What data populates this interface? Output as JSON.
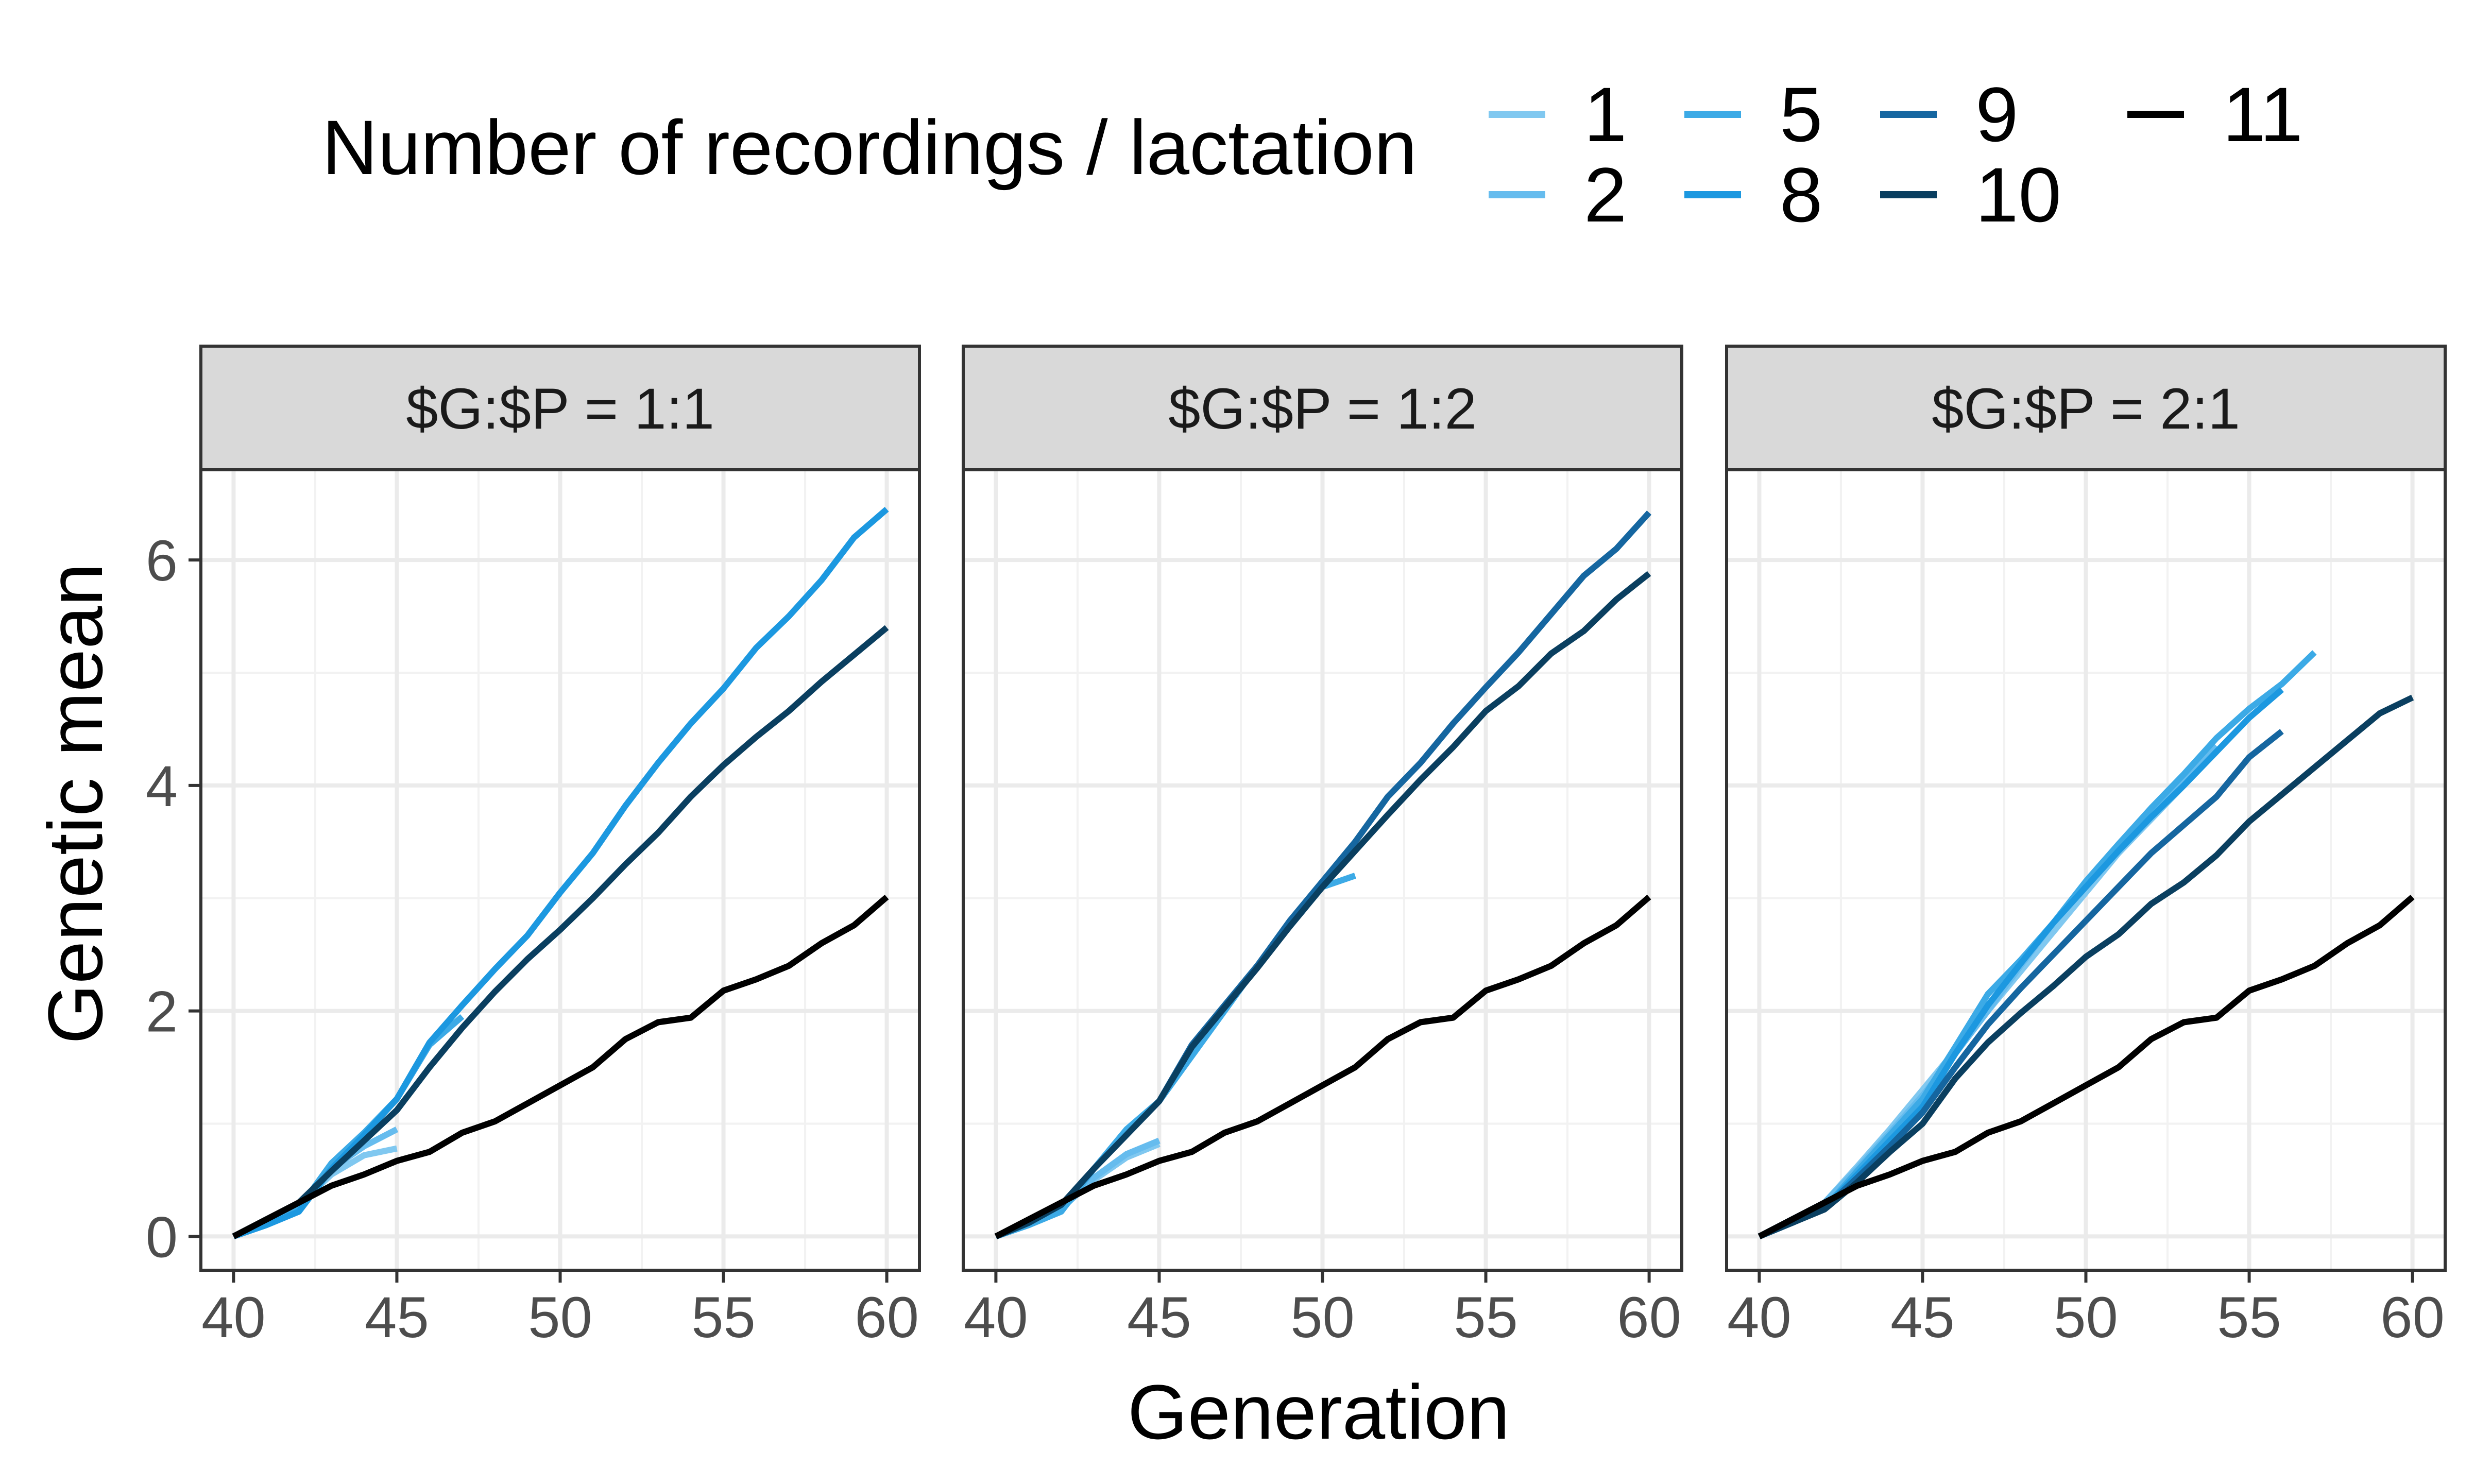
{
  "legend": {
    "title": "Number of recordings / lactation",
    "entries": [
      {
        "label": "1",
        "color": "#80C8F0"
      },
      {
        "label": "2",
        "color": "#66BCEE"
      },
      {
        "label": "5",
        "color": "#3CAAE6"
      },
      {
        "label": "8",
        "color": "#1C98E0"
      },
      {
        "label": "9",
        "color": "#1566A0"
      },
      {
        "label": "10",
        "color": "#0A3F60"
      },
      {
        "label": "11",
        "color": "#000000"
      }
    ]
  },
  "chart_data": {
    "type": "line",
    "xlabel": "Generation",
    "ylabel": "Genetic mean",
    "xlim": [
      39,
      61
    ],
    "ylim": [
      -0.3,
      6.8
    ],
    "x_ticks": [
      40,
      45,
      50,
      55,
      60
    ],
    "y_ticks": [
      0,
      2,
      4,
      6
    ],
    "grid": true,
    "legend_position": "top",
    "panels": [
      {
        "title": "$G:$P = 1:1",
        "series": [
          {
            "name": "1",
            "x": [
              40,
              41,
              42,
              43,
              44,
              45
            ],
            "y": [
              0,
              0.15,
              0.28,
              0.55,
              0.72,
              0.78
            ]
          },
          {
            "name": "2",
            "x": [
              40,
              41,
              42,
              43,
              44,
              45
            ],
            "y": [
              0,
              0.14,
              0.27,
              0.6,
              0.8,
              0.95
            ]
          },
          {
            "name": "5",
            "x": [
              40,
              41,
              42,
              43,
              44,
              45,
              46,
              47
            ],
            "y": [
              0,
              0.12,
              0.25,
              0.65,
              0.92,
              1.22,
              1.7,
              1.95
            ]
          },
          {
            "name": "8",
            "x": [
              40,
              41,
              42,
              43,
              44,
              45,
              46,
              47,
              48,
              49,
              50,
              51,
              52,
              53,
              54,
              55,
              56,
              57,
              58,
              59,
              60
            ],
            "y": [
              0,
              0.1,
              0.22,
              0.6,
              0.9,
              1.22,
              1.72,
              2.05,
              2.37,
              2.67,
              3.05,
              3.4,
              3.82,
              4.2,
              4.55,
              4.86,
              5.22,
              5.5,
              5.82,
              6.2,
              6.45
            ]
          },
          {
            "name": "10",
            "x": [
              40,
              41,
              42,
              43,
              44,
              45,
              46,
              47,
              48,
              49,
              50,
              51,
              52,
              53,
              54,
              55,
              56,
              57,
              58,
              59,
              60
            ],
            "y": [
              0,
              0.15,
              0.3,
              0.58,
              0.85,
              1.12,
              1.5,
              1.85,
              2.17,
              2.46,
              2.72,
              3.0,
              3.3,
              3.58,
              3.9,
              4.18,
              4.43,
              4.66,
              4.92,
              5.16,
              5.4
            ]
          },
          {
            "name": "11",
            "x": [
              40,
              41,
              42,
              43,
              44,
              45,
              46,
              47,
              48,
              49,
              50,
              51,
              52,
              53,
              54,
              55,
              56,
              57,
              58,
              59,
              60
            ],
            "y": [
              0,
              0.15,
              0.3,
              0.45,
              0.55,
              0.67,
              0.75,
              0.92,
              1.02,
              1.18,
              1.34,
              1.5,
              1.75,
              1.9,
              1.94,
              2.18,
              2.28,
              2.4,
              2.6,
              2.76,
              3.01
            ]
          }
        ]
      },
      {
        "title": "$G:$P = 1:2",
        "series": [
          {
            "name": "1",
            "x": [
              40,
              41,
              42,
              43,
              44,
              45
            ],
            "y": [
              0,
              0.12,
              0.25,
              0.5,
              0.7,
              0.82
            ]
          },
          {
            "name": "2",
            "x": [
              40,
              41,
              42,
              43,
              44,
              45
            ],
            "y": [
              0,
              0.11,
              0.24,
              0.52,
              0.73,
              0.85
            ]
          },
          {
            "name": "5",
            "x": [
              40,
              41,
              42,
              43,
              44,
              45,
              46,
              47,
              48,
              49,
              50,
              51
            ],
            "y": [
              0,
              0.1,
              0.22,
              0.6,
              0.95,
              1.2,
              1.6,
              2.0,
              2.4,
              2.75,
              3.1,
              3.2
            ]
          },
          {
            "name": "9",
            "x": [
              40,
              41,
              42,
              43,
              44,
              45,
              46,
              47,
              48,
              49,
              50,
              51,
              52,
              53,
              54,
              55,
              56,
              57,
              58,
              59,
              60
            ],
            "y": [
              0,
              0.12,
              0.28,
              0.6,
              0.9,
              1.2,
              1.7,
              2.05,
              2.4,
              2.8,
              3.15,
              3.5,
              3.9,
              4.2,
              4.55,
              4.87,
              5.18,
              5.52,
              5.86,
              6.1,
              6.42
            ]
          },
          {
            "name": "10",
            "x": [
              40,
              41,
              42,
              43,
              44,
              45,
              46,
              47,
              48,
              49,
              50,
              51,
              52,
              53,
              54,
              55,
              56,
              57,
              58,
              59,
              60
            ],
            "y": [
              0,
              0.12,
              0.28,
              0.6,
              0.9,
              1.2,
              1.68,
              2.03,
              2.38,
              2.75,
              3.1,
              3.42,
              3.74,
              4.05,
              4.34,
              4.66,
              4.88,
              5.17,
              5.37,
              5.65,
              5.88
            ]
          },
          {
            "name": "11",
            "x": [
              40,
              41,
              42,
              43,
              44,
              45,
              46,
              47,
              48,
              49,
              50,
              51,
              52,
              53,
              54,
              55,
              56,
              57,
              58,
              59,
              60
            ],
            "y": [
              0,
              0.15,
              0.3,
              0.45,
              0.55,
              0.67,
              0.75,
              0.92,
              1.02,
              1.18,
              1.34,
              1.5,
              1.75,
              1.9,
              1.94,
              2.18,
              2.28,
              2.4,
              2.6,
              2.76,
              3.01
            ]
          }
        ]
      },
      {
        "title": "$G:$P = 2:1",
        "series": [
          {
            "name": "1",
            "x": [
              40,
              41,
              42,
              43,
              44,
              45,
              46,
              47,
              48,
              49,
              50,
              51,
              52,
              53,
              54
            ],
            "y": [
              0,
              0.15,
              0.3,
              0.62,
              0.95,
              1.3,
              1.65,
              2.0,
              2.35,
              2.7,
              3.05,
              3.4,
              3.7,
              4.0,
              4.3
            ]
          },
          {
            "name": "2",
            "x": [
              40,
              41,
              42,
              43,
              44,
              45,
              46,
              47,
              48,
              49,
              50,
              51,
              52,
              53,
              54
            ],
            "y": [
              0,
              0.15,
              0.3,
              0.6,
              0.92,
              1.25,
              1.62,
              2.0,
              2.4,
              2.78,
              3.12,
              3.45,
              3.75,
              4.05,
              4.35
            ]
          },
          {
            "name": "5",
            "x": [
              40,
              41,
              42,
              43,
              44,
              45,
              46,
              47,
              48,
              49,
              50,
              51,
              52,
              53,
              54,
              55,
              56,
              57
            ],
            "y": [
              0,
              0.12,
              0.25,
              0.58,
              0.9,
              1.22,
              1.68,
              2.15,
              2.45,
              2.78,
              3.15,
              3.48,
              3.8,
              4.1,
              4.42,
              4.68,
              4.9,
              5.18
            ]
          },
          {
            "name": "8",
            "x": [
              40,
              41,
              42,
              43,
              44,
              45,
              46,
              47,
              48,
              49,
              50,
              51,
              52,
              53,
              54,
              55,
              56
            ],
            "y": [
              0,
              0.12,
              0.25,
              0.55,
              0.85,
              1.15,
              1.62,
              2.05,
              2.42,
              2.78,
              3.1,
              3.42,
              3.72,
              4.0,
              4.3,
              4.6,
              4.85
            ]
          },
          {
            "name": "9",
            "x": [
              40,
              41,
              42,
              43,
              44,
              45,
              46,
              47,
              48,
              49,
              50,
              51,
              52,
              53,
              54,
              55,
              56
            ],
            "y": [
              0,
              0.12,
              0.25,
              0.52,
              0.8,
              1.1,
              1.5,
              1.88,
              2.2,
              2.5,
              2.8,
              3.1,
              3.4,
              3.65,
              3.9,
              4.25,
              4.48
            ]
          },
          {
            "name": "10",
            "x": [
              40,
              41,
              42,
              43,
              44,
              45,
              46,
              47,
              48,
              49,
              50,
              51,
              52,
              53,
              54,
              55,
              56,
              57,
              58,
              59,
              60
            ],
            "y": [
              0,
              0.12,
              0.24,
              0.48,
              0.75,
              1.0,
              1.4,
              1.72,
              1.98,
              2.22,
              2.48,
              2.68,
              2.95,
              3.14,
              3.38,
              3.68,
              3.92,
              4.16,
              4.4,
              4.64,
              4.78
            ]
          },
          {
            "name": "11",
            "x": [
              40,
              41,
              42,
              43,
              44,
              45,
              46,
              47,
              48,
              49,
              50,
              51,
              52,
              53,
              54,
              55,
              56,
              57,
              58,
              59,
              60
            ],
            "y": [
              0,
              0.15,
              0.3,
              0.45,
              0.55,
              0.67,
              0.75,
              0.92,
              1.02,
              1.18,
              1.34,
              1.5,
              1.75,
              1.9,
              1.94,
              2.18,
              2.28,
              2.4,
              2.6,
              2.76,
              3.01
            ]
          }
        ]
      }
    ]
  }
}
